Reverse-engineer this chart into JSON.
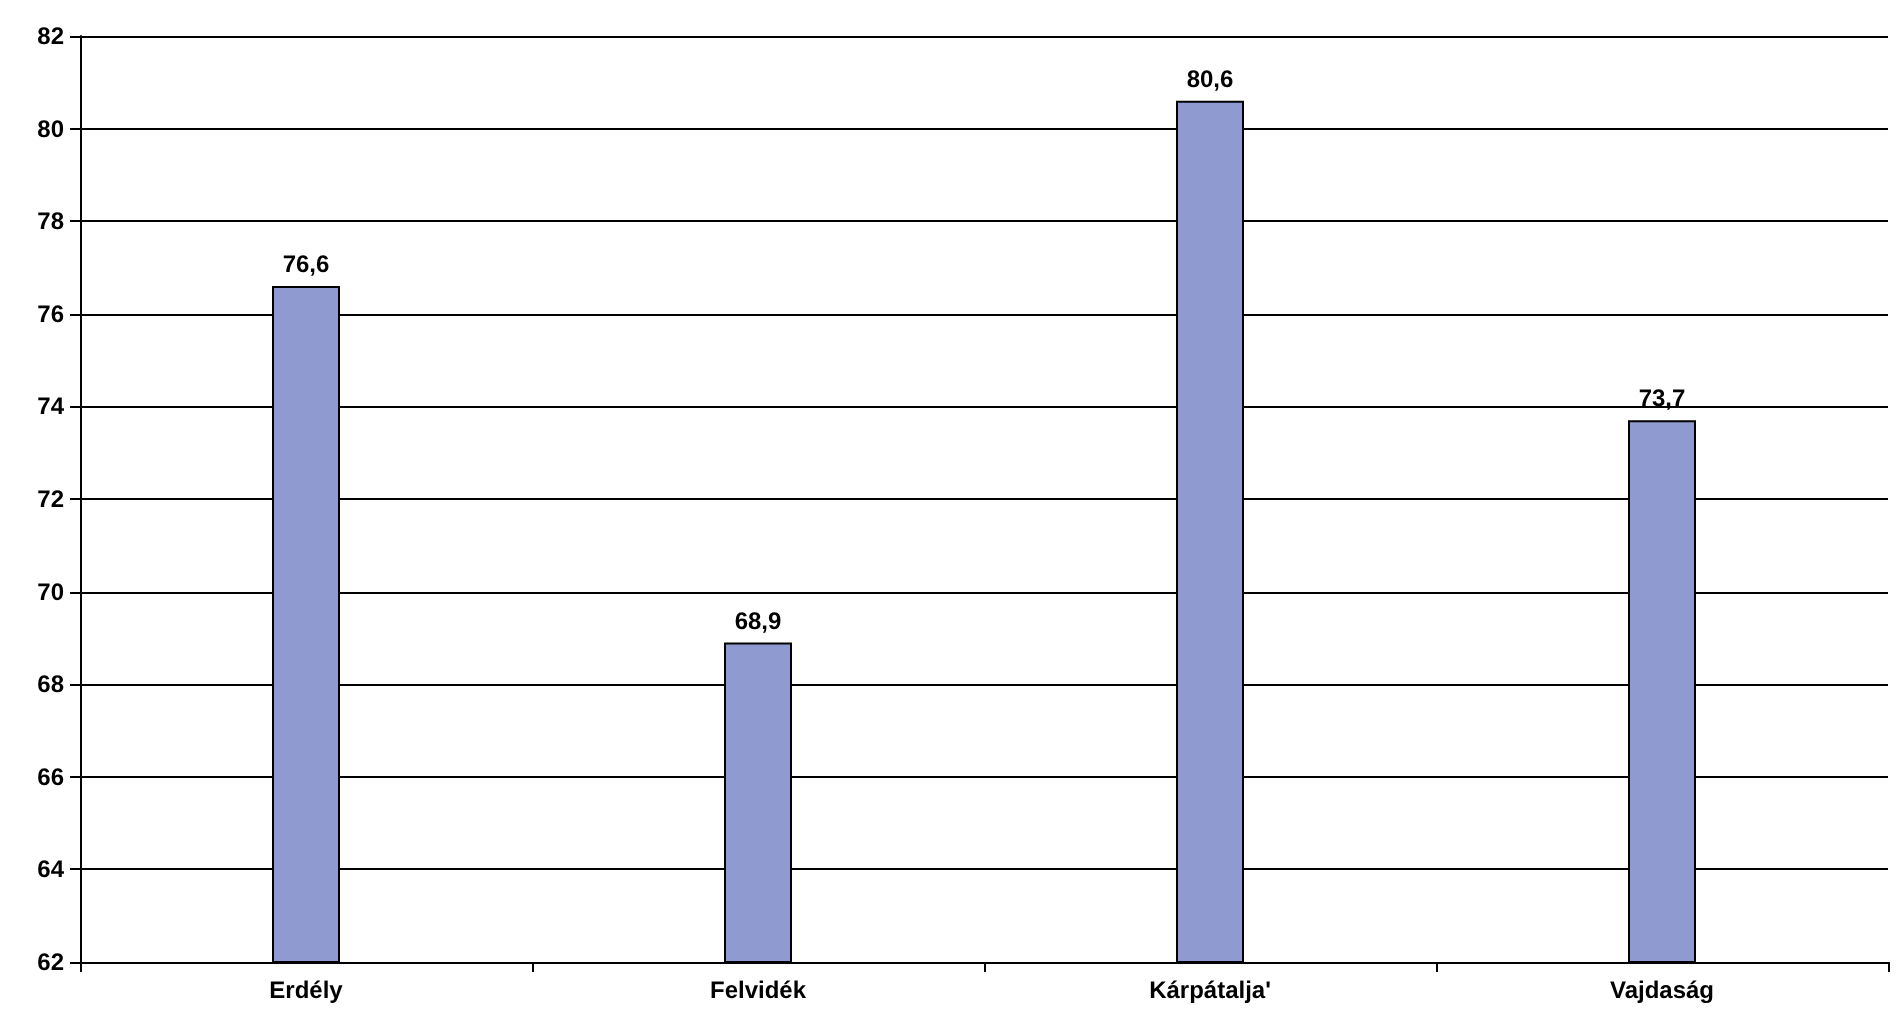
{
  "chart_data": {
    "type": "bar",
    "categories": [
      "Erdély",
      "Felvidék",
      "Kárpátalja'",
      "Vajdaság"
    ],
    "values": [
      76.6,
      68.9,
      80.6,
      73.7
    ],
    "color": "#8e9ad0",
    "value_labels": [
      "76,6",
      "68,9",
      "80,6",
      "73,7"
    ],
    "ylim": [
      62,
      82
    ],
    "yticks": [
      62,
      64,
      66,
      68,
      70,
      72,
      74,
      76,
      78,
      80,
      82
    ],
    "grid": "y"
  }
}
